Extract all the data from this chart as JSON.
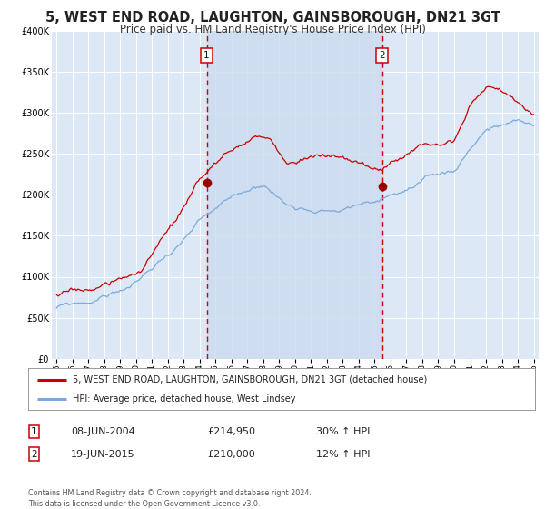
{
  "title": "5, WEST END ROAD, LAUGHTON, GAINSBOROUGH, DN21 3GT",
  "subtitle": "Price paid vs. HM Land Registry's House Price Index (HPI)",
  "title_fontsize": 10.5,
  "subtitle_fontsize": 8.5,
  "background_color": "#ffffff",
  "plot_bg_color": "#dce8f5",
  "grid_color": "#ffffff",
  "red_line_color": "#cc0000",
  "blue_line_color": "#7aaadd",
  "marker_color": "#990000",
  "vline_color": "#cc0000",
  "vshade_color": "#ccddf0",
  "ylim": [
    0,
    400000
  ],
  "yticks": [
    0,
    50000,
    100000,
    150000,
    200000,
    250000,
    300000,
    350000,
    400000
  ],
  "ytick_labels": [
    "£0",
    "£50K",
    "£100K",
    "£150K",
    "£200K",
    "£250K",
    "£300K",
    "£350K",
    "£400K"
  ],
  "xtick_years": [
    1995,
    1996,
    1997,
    1998,
    1999,
    2000,
    2001,
    2002,
    2003,
    2004,
    2005,
    2006,
    2007,
    2008,
    2009,
    2010,
    2011,
    2012,
    2013,
    2014,
    2015,
    2016,
    2017,
    2018,
    2019,
    2020,
    2021,
    2022,
    2023,
    2024,
    2025
  ],
  "sale1_year": 2004.44,
  "sale1_price": 214950,
  "sale1_label": "1",
  "sale2_year": 2015.46,
  "sale2_price": 210000,
  "sale2_label": "2",
  "legend_red_label": "5, WEST END ROAD, LAUGHTON, GAINSBOROUGH, DN21 3GT (detached house)",
  "legend_blue_label": "HPI: Average price, detached house, West Lindsey",
  "table_row1": [
    "1",
    "08-JUN-2004",
    "£214,950",
    "30% ↑ HPI"
  ],
  "table_row2": [
    "2",
    "19-JUN-2015",
    "£210,000",
    "12% ↑ HPI"
  ],
  "footnote": "Contains HM Land Registry data © Crown copyright and database right 2024.\nThis data is licensed under the Open Government Licence v3.0.",
  "red_seed": 17,
  "blue_seed": 99
}
